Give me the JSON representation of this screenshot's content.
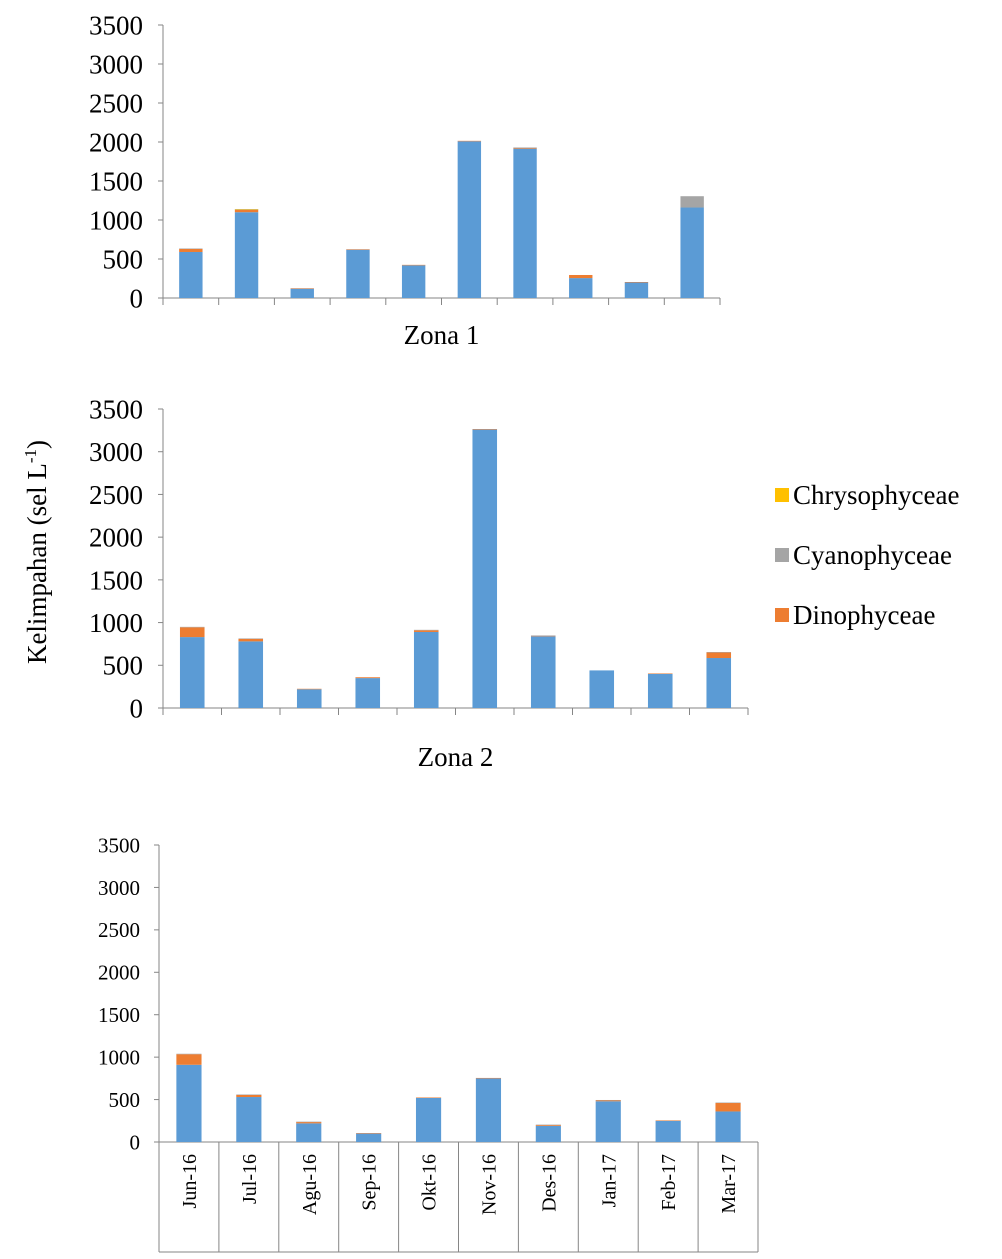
{
  "y_axis_title": "Kelimpahan (sel L",
  "y_axis_title_sup": "-1",
  "y_axis_title_end": ")",
  "categories": [
    "Jun-16",
    "Jul-16",
    "Agu-16",
    "Sep-16",
    "Okt-16",
    "Nov-16",
    "Des-16",
    "Jan-17",
    "Feb-17",
    "Mar-17"
  ],
  "series_colors": {
    "base": "#5b9bd5",
    "Dinophyceae": "#ed7d31",
    "Cyanophyceae": "#a5a5a5",
    "Chrysophyceae": "#ffc000"
  },
  "legend": [
    {
      "name": "Chrysophyceae",
      "color": "#ffc000"
    },
    {
      "name": "Cyanophyceae",
      "color": "#a5a5a5"
    },
    {
      "name": "Dinophyceae",
      "color": "#ed7d31"
    }
  ],
  "chart_data": [
    {
      "type": "bar",
      "stacked": true,
      "xlabel": "Zona 1",
      "ylim": [
        0,
        3500
      ],
      "yticks": [
        0,
        500,
        1000,
        1500,
        2000,
        2500,
        3000,
        3500
      ],
      "categories": [
        "Jun-16",
        "Jul-16",
        "Agu-16",
        "Sep-16",
        "Okt-16",
        "Nov-16",
        "Des-16",
        "Jan-17",
        "Feb-17",
        "Mar-17"
      ],
      "series": [
        {
          "values": [
            590,
            1100,
            120,
            620,
            420,
            2010,
            1915,
            255,
            200,
            1160
          ]
        },
        {
          "name": "Dinophyceae",
          "values": [
            40,
            30,
            5,
            5,
            5,
            5,
            10,
            40,
            5,
            0
          ]
        },
        {
          "name": "Cyanophyceae",
          "values": [
            5,
            5,
            0,
            0,
            0,
            0,
            5,
            0,
            0,
            145
          ]
        },
        {
          "name": "Chrysophyceae",
          "values": [
            0,
            5,
            0,
            0,
            0,
            0,
            0,
            0,
            0,
            0
          ]
        }
      ]
    },
    {
      "type": "bar",
      "stacked": true,
      "xlabel": "Zona 2",
      "ylim": [
        0,
        3500
      ],
      "yticks": [
        0,
        500,
        1000,
        1500,
        2000,
        2500,
        3000,
        3500
      ],
      "categories": [
        "Jun-16",
        "Jul-16",
        "Agu-16",
        "Sep-16",
        "Okt-16",
        "Nov-16",
        "Des-16",
        "Jan-17",
        "Feb-17",
        "Mar-17"
      ],
      "series": [
        {
          "values": [
            830,
            780,
            220,
            350,
            890,
            3260,
            840,
            440,
            400,
            585
          ]
        },
        {
          "name": "Dinophyceae",
          "values": [
            115,
            30,
            5,
            10,
            20,
            5,
            5,
            0,
            5,
            65
          ]
        },
        {
          "name": "Cyanophyceae",
          "values": [
            5,
            5,
            0,
            0,
            5,
            0,
            5,
            0,
            0,
            5
          ]
        },
        {
          "name": "Chrysophyceae",
          "values": [
            0,
            0,
            0,
            0,
            0,
            0,
            0,
            0,
            0,
            0
          ]
        }
      ]
    },
    {
      "type": "bar",
      "stacked": true,
      "xlabel": "",
      "ylim": [
        0,
        3500
      ],
      "yticks": [
        0,
        500,
        1000,
        1500,
        2000,
        2500,
        3000,
        3500
      ],
      "categories": [
        "Jun-16",
        "Jul-16",
        "Agu-16",
        "Sep-16",
        "Okt-16",
        "Nov-16",
        "Des-16",
        "Jan-17",
        "Feb-17",
        "Mar-17"
      ],
      "series": [
        {
          "values": [
            910,
            530,
            220,
            100,
            520,
            750,
            190,
            480,
            250,
            360
          ]
        },
        {
          "name": "Dinophyceae",
          "values": [
            125,
            25,
            15,
            5,
            5,
            5,
            10,
            10,
            5,
            100
          ]
        },
        {
          "name": "Cyanophyceae",
          "values": [
            5,
            5,
            5,
            0,
            0,
            0,
            5,
            5,
            0,
            5
          ]
        },
        {
          "name": "Chrysophyceae",
          "values": [
            0,
            0,
            0,
            0,
            0,
            0,
            0,
            0,
            0,
            0
          ]
        }
      ]
    }
  ]
}
